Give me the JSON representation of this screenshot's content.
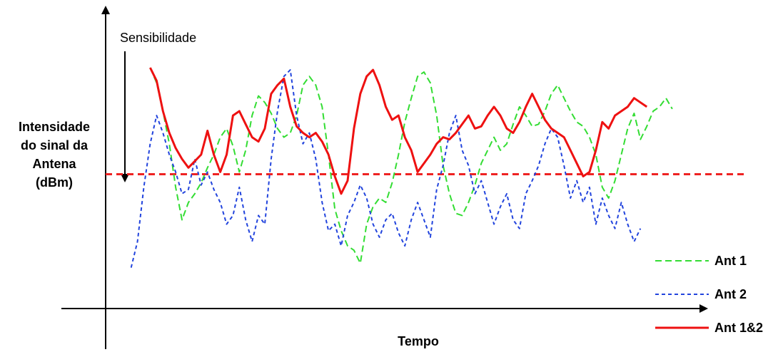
{
  "chart_data": {
    "type": "line",
    "title": "",
    "xlabel": "Tempo",
    "ylabel_lines": [
      "Intensidade",
      "do sinal da",
      "Antena",
      "(dBm)"
    ],
    "annotation": "Sensibilidade",
    "x_ticks": false,
    "y_ticks": false,
    "xlim": [
      0,
      100
    ],
    "ylim": [
      0,
      100
    ],
    "threshold": {
      "value": 51,
      "color": "#ee2222",
      "style": "dashed"
    },
    "legend_position": "bottom-right",
    "series": [
      {
        "name": "Ant 1",
        "color": "#33dd33",
        "style": "dashed",
        "points": [
          [
            7,
            100
          ],
          [
            8,
            93
          ],
          [
            9,
            80
          ],
          [
            10,
            65
          ],
          [
            11,
            45
          ],
          [
            12,
            30
          ],
          [
            13,
            38
          ],
          [
            14,
            42
          ],
          [
            15,
            47
          ],
          [
            16,
            54
          ],
          [
            17,
            60
          ],
          [
            18,
            68
          ],
          [
            19,
            72
          ],
          [
            20,
            64
          ],
          [
            21,
            52
          ],
          [
            22,
            62
          ],
          [
            23,
            78
          ],
          [
            24,
            87
          ],
          [
            25,
            84
          ],
          [
            26,
            79
          ],
          [
            27,
            72
          ],
          [
            28,
            68
          ],
          [
            29,
            70
          ],
          [
            30,
            78
          ],
          [
            31,
            92
          ],
          [
            32,
            96
          ],
          [
            33,
            92
          ],
          [
            34,
            82
          ],
          [
            35,
            60
          ],
          [
            36,
            35
          ],
          [
            37,
            25
          ],
          [
            38,
            18
          ],
          [
            39,
            16
          ],
          [
            40,
            10
          ],
          [
            41,
            28
          ],
          [
            42,
            36
          ],
          [
            43,
            40
          ],
          [
            44,
            38
          ],
          [
            45,
            47
          ],
          [
            46,
            60
          ],
          [
            47,
            75
          ],
          [
            48,
            86
          ],
          [
            49,
            96
          ],
          [
            50,
            98
          ],
          [
            51,
            93
          ],
          [
            52,
            78
          ],
          [
            53,
            55
          ],
          [
            54,
            42
          ],
          [
            55,
            33
          ],
          [
            56,
            32
          ],
          [
            57,
            38
          ],
          [
            58,
            46
          ],
          [
            59,
            56
          ],
          [
            60,
            62
          ],
          [
            61,
            68
          ],
          [
            62,
            62
          ],
          [
            63,
            65
          ],
          [
            64,
            74
          ],
          [
            65,
            82
          ],
          [
            66,
            78
          ],
          [
            67,
            73
          ],
          [
            68,
            74
          ],
          [
            69,
            80
          ],
          [
            70,
            88
          ],
          [
            71,
            92
          ],
          [
            72,
            86
          ],
          [
            73,
            80
          ],
          [
            74,
            75
          ],
          [
            75,
            73
          ],
          [
            76,
            68
          ],
          [
            77,
            60
          ],
          [
            78,
            45
          ],
          [
            79,
            40
          ],
          [
            80,
            48
          ],
          [
            81,
            60
          ],
          [
            82,
            72
          ],
          [
            83,
            79
          ],
          [
            84,
            67
          ],
          [
            85,
            73
          ],
          [
            86,
            80
          ],
          [
            87,
            82
          ],
          [
            88,
            86
          ],
          [
            89,
            81
          ]
        ]
      },
      {
        "name": "Ant 2",
        "color": "#2244dd",
        "style": "dashed",
        "points": [
          [
            4,
            8
          ],
          [
            5,
            20
          ],
          [
            6,
            45
          ],
          [
            7,
            65
          ],
          [
            8,
            78
          ],
          [
            9,
            70
          ],
          [
            10,
            60
          ],
          [
            11,
            52
          ],
          [
            12,
            42
          ],
          [
            13,
            44
          ],
          [
            14,
            58
          ],
          [
            15,
            46
          ],
          [
            16,
            52
          ],
          [
            17,
            44
          ],
          [
            18,
            38
          ],
          [
            19,
            28
          ],
          [
            20,
            32
          ],
          [
            21,
            45
          ],
          [
            22,
            30
          ],
          [
            23,
            20
          ],
          [
            24,
            32
          ],
          [
            25,
            28
          ],
          [
            26,
            58
          ],
          [
            27,
            80
          ],
          [
            28,
            96
          ],
          [
            29,
            99
          ],
          [
            30,
            78
          ],
          [
            31,
            65
          ],
          [
            32,
            70
          ],
          [
            33,
            58
          ],
          [
            34,
            38
          ],
          [
            35,
            25
          ],
          [
            36,
            28
          ],
          [
            37,
            18
          ],
          [
            38,
            32
          ],
          [
            39,
            38
          ],
          [
            40,
            46
          ],
          [
            41,
            40
          ],
          [
            42,
            28
          ],
          [
            43,
            22
          ],
          [
            44,
            30
          ],
          [
            45,
            33
          ],
          [
            46,
            24
          ],
          [
            47,
            18
          ],
          [
            48,
            30
          ],
          [
            49,
            38
          ],
          [
            50,
            30
          ],
          [
            51,
            22
          ],
          [
            52,
            44
          ],
          [
            53,
            55
          ],
          [
            54,
            70
          ],
          [
            55,
            78
          ],
          [
            56,
            62
          ],
          [
            57,
            55
          ],
          [
            58,
            42
          ],
          [
            59,
            48
          ],
          [
            60,
            38
          ],
          [
            61,
            28
          ],
          [
            62,
            36
          ],
          [
            63,
            42
          ],
          [
            64,
            30
          ],
          [
            65,
            26
          ],
          [
            66,
            42
          ],
          [
            67,
            48
          ],
          [
            68,
            55
          ],
          [
            69,
            65
          ],
          [
            70,
            72
          ],
          [
            71,
            68
          ],
          [
            72,
            55
          ],
          [
            73,
            40
          ],
          [
            74,
            48
          ],
          [
            75,
            38
          ],
          [
            76,
            45
          ],
          [
            77,
            28
          ],
          [
            78,
            40
          ],
          [
            79,
            32
          ],
          [
            80,
            26
          ],
          [
            81,
            38
          ],
          [
            82,
            28
          ],
          [
            83,
            20
          ],
          [
            84,
            26
          ]
        ]
      },
      {
        "name": "Ant 1&2",
        "color": "#ee1111",
        "style": "solid",
        "points": [
          [
            7,
            100
          ],
          [
            8,
            94
          ],
          [
            9,
            80
          ],
          [
            10,
            70
          ],
          [
            11,
            63
          ],
          [
            12,
            58
          ],
          [
            13,
            54
          ],
          [
            14,
            57
          ],
          [
            15,
            60
          ],
          [
            16,
            71
          ],
          [
            17,
            60
          ],
          [
            18,
            52
          ],
          [
            19,
            60
          ],
          [
            20,
            78
          ],
          [
            21,
            80
          ],
          [
            22,
            74
          ],
          [
            23,
            68
          ],
          [
            24,
            66
          ],
          [
            25,
            72
          ],
          [
            26,
            88
          ],
          [
            27,
            92
          ],
          [
            28,
            95
          ],
          [
            29,
            82
          ],
          [
            30,
            73
          ],
          [
            31,
            70
          ],
          [
            32,
            68
          ],
          [
            33,
            70
          ],
          [
            34,
            66
          ],
          [
            35,
            60
          ],
          [
            36,
            50
          ],
          [
            37,
            42
          ],
          [
            38,
            48
          ],
          [
            39,
            72
          ],
          [
            40,
            88
          ],
          [
            41,
            96
          ],
          [
            42,
            99
          ],
          [
            43,
            92
          ],
          [
            44,
            82
          ],
          [
            45,
            76
          ],
          [
            46,
            78
          ],
          [
            47,
            68
          ],
          [
            48,
            62
          ],
          [
            49,
            52
          ],
          [
            50,
            56
          ],
          [
            51,
            60
          ],
          [
            52,
            65
          ],
          [
            53,
            68
          ],
          [
            54,
            67
          ],
          [
            55,
            70
          ],
          [
            56,
            74
          ],
          [
            57,
            78
          ],
          [
            58,
            72
          ],
          [
            59,
            73
          ],
          [
            60,
            78
          ],
          [
            61,
            82
          ],
          [
            62,
            78
          ],
          [
            63,
            72
          ],
          [
            64,
            70
          ],
          [
            65,
            75
          ],
          [
            66,
            82
          ],
          [
            67,
            88
          ],
          [
            68,
            82
          ],
          [
            69,
            76
          ],
          [
            70,
            72
          ],
          [
            71,
            70
          ],
          [
            72,
            68
          ],
          [
            73,
            62
          ],
          [
            74,
            56
          ],
          [
            75,
            50
          ],
          [
            76,
            52
          ],
          [
            77,
            62
          ],
          [
            78,
            75
          ],
          [
            79,
            72
          ],
          [
            80,
            78
          ],
          [
            81,
            80
          ],
          [
            82,
            82
          ],
          [
            83,
            86
          ],
          [
            84,
            84
          ],
          [
            85,
            82
          ]
        ]
      }
    ]
  }
}
